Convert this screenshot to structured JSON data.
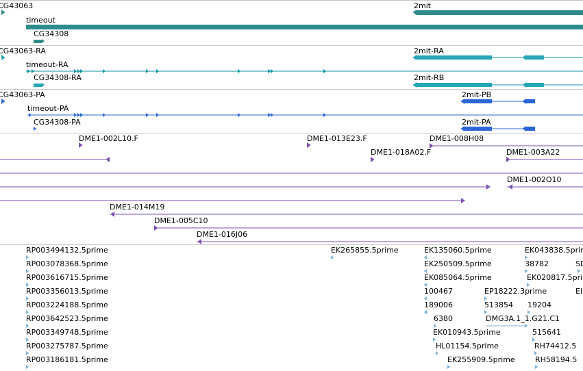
{
  "colors": {
    "gene": "#2e8b8b",
    "mrna_utr": "#26a6b7",
    "mrna_line": "#0e93a6",
    "cds": "#2a66d6",
    "clone": "#7a4fb0",
    "est": "#7db3dc",
    "separator": "#c8c8c8"
  },
  "tracks": {
    "gene": {
      "labels": [
        "CG43063",
        "2mit",
        "timeout",
        "CG34308"
      ]
    },
    "mrna": {
      "labels": [
        "CG43063-RA",
        "2mit-RA",
        "timeout-RA",
        "CG34308-RA",
        "2mit-RB"
      ]
    },
    "protein": {
      "labels": [
        "CG43063-PA",
        "2mit-PB",
        "timeout-PA",
        "CG34308-PA",
        "2mit-PA"
      ]
    },
    "clones": {
      "labels": [
        "DME1-002L10.F",
        "DME1-013E23.F",
        "DME1-008H08",
        "DME1-018A02.F",
        "DME1-003A22",
        "DME1-002O10",
        "DME1-014M19",
        "DME1-005C10",
        "DME1-016J06"
      ]
    },
    "ests": {
      "labels": [
        "RP003494132.5prime",
        "RP003078368.5prime",
        "RP003616715.5prime",
        "RP003356013.5prime",
        "RP003224188.5prime",
        "RP003642523.5prime",
        "RP003349748.5prime",
        "RP003275787.5prime",
        "RP003186181.5prime",
        "EK265855.5prime",
        "EK135060.5prime",
        "EK250509.5prime",
        "EK085064.5prime",
        "100467",
        "189006",
        "6380",
        "EK010943.5prime",
        "HL01154.5prime",
        "EK255909.5prime",
        "EP18222.3prime",
        "513854",
        "DMG3A.1_1.G21.C1",
        "EK043838.5prime",
        "38782",
        "EK020817.5prime",
        "19204",
        "515641",
        "RH74412.5",
        "RH58194.5",
        "SD",
        "EI"
      ]
    }
  }
}
